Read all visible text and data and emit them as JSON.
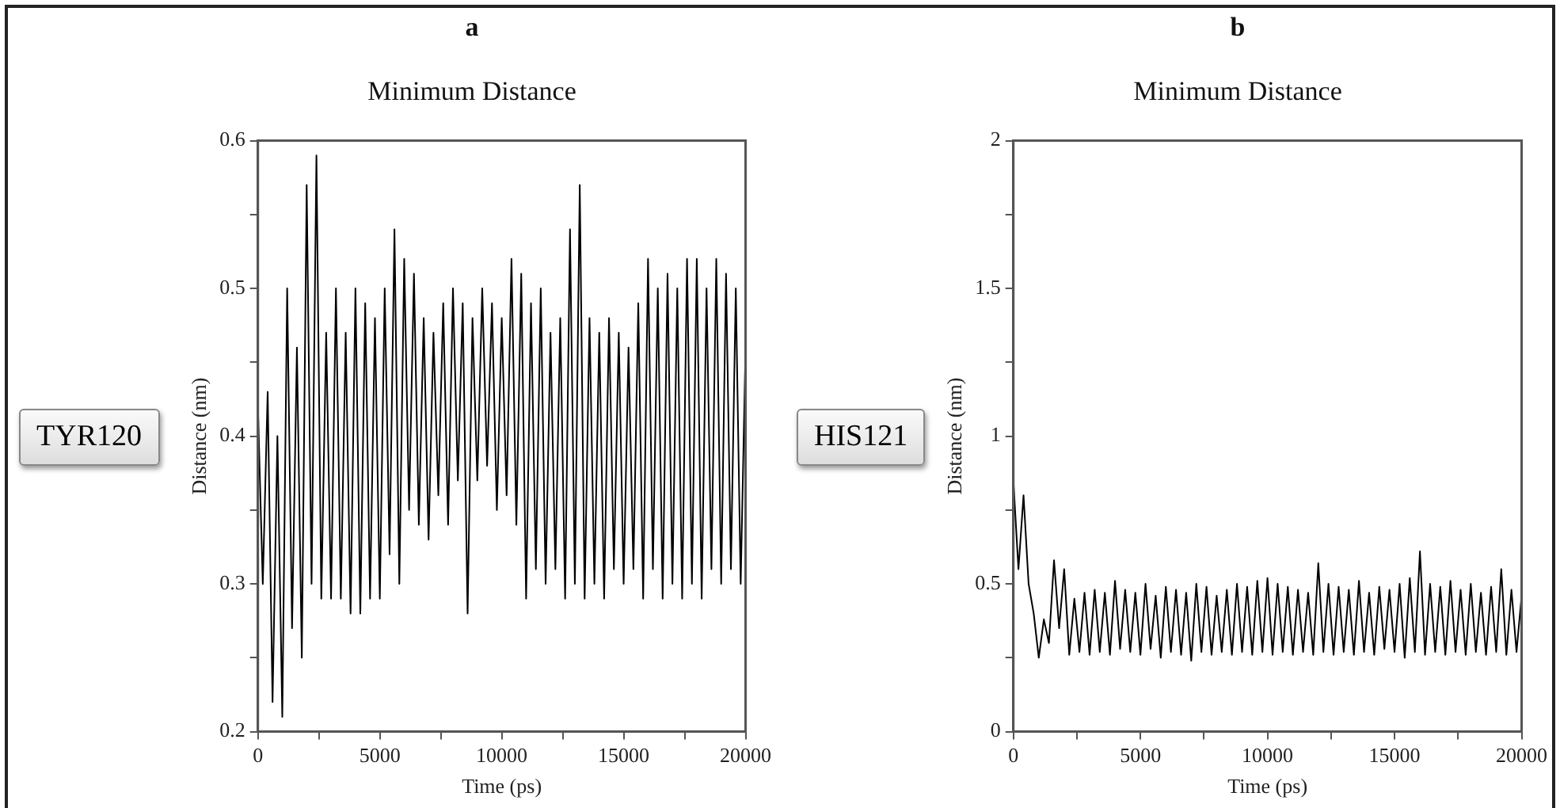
{
  "chart_data": [
    {
      "type": "line",
      "title": "a",
      "subtitle": "Minimum Distance",
      "xlabel": "Time (ps)",
      "ylabel": "Distance (nm)",
      "annotations": [
        "TYR120"
      ],
      "x": [
        0,
        200,
        400,
        600,
        800,
        1000,
        1200,
        1400,
        1600,
        1800,
        2000,
        2200,
        2400,
        2600,
        2800,
        3000,
        3200,
        3400,
        3600,
        3800,
        4000,
        4200,
        4400,
        4600,
        4800,
        5000,
        5200,
        5400,
        5600,
        5800,
        6000,
        6200,
        6400,
        6600,
        6800,
        7000,
        7200,
        7400,
        7600,
        7800,
        8000,
        8200,
        8400,
        8600,
        8800,
        9000,
        9200,
        9400,
        9600,
        9800,
        10000,
        10200,
        10400,
        10600,
        10800,
        11000,
        11200,
        11400,
        11600,
        11800,
        12000,
        12200,
        12400,
        12600,
        12800,
        13000,
        13200,
        13400,
        13600,
        13800,
        14000,
        14200,
        14400,
        14600,
        14800,
        15000,
        15200,
        15400,
        15600,
        15800,
        16000,
        16200,
        16400,
        16600,
        16800,
        17000,
        17200,
        17400,
        17600,
        17800,
        18000,
        18200,
        18400,
        18600,
        18800,
        19000,
        19200,
        19400,
        19600,
        19800,
        20000
      ],
      "series": [
        {
          "color": "#000000",
          "values": [
            0.42,
            0.3,
            0.43,
            0.22,
            0.4,
            0.21,
            0.5,
            0.27,
            0.46,
            0.25,
            0.57,
            0.3,
            0.59,
            0.29,
            0.47,
            0.29,
            0.5,
            0.29,
            0.47,
            0.28,
            0.5,
            0.28,
            0.49,
            0.29,
            0.48,
            0.29,
            0.5,
            0.32,
            0.54,
            0.3,
            0.52,
            0.35,
            0.51,
            0.34,
            0.48,
            0.33,
            0.47,
            0.36,
            0.49,
            0.34,
            0.5,
            0.37,
            0.49,
            0.28,
            0.48,
            0.37,
            0.5,
            0.38,
            0.49,
            0.35,
            0.48,
            0.36,
            0.52,
            0.34,
            0.51,
            0.29,
            0.49,
            0.31,
            0.5,
            0.3,
            0.47,
            0.31,
            0.48,
            0.29,
            0.54,
            0.3,
            0.57,
            0.29,
            0.48,
            0.3,
            0.47,
            0.29,
            0.48,
            0.31,
            0.47,
            0.3,
            0.46,
            0.31,
            0.49,
            0.29,
            0.52,
            0.31,
            0.5,
            0.29,
            0.51,
            0.3,
            0.5,
            0.29,
            0.52,
            0.3,
            0.52,
            0.29,
            0.5,
            0.31,
            0.52,
            0.3,
            0.51,
            0.31,
            0.5,
            0.3,
            0.46
          ]
        }
      ],
      "xlim": [
        0,
        20000
      ],
      "xticks": [
        0,
        {
          "value": 2500,
          "label": null
        },
        5000,
        {
          "value": 7500,
          "label": null
        },
        10000,
        {
          "value": 12500,
          "label": null
        },
        15000,
        {
          "value": 17500,
          "label": null
        },
        20000
      ],
      "ylim": [
        0.2,
        0.6
      ],
      "yticks": [
        0.2,
        {
          "value": 0.25,
          "label": null
        },
        0.3,
        {
          "value": 0.35,
          "label": null
        },
        0.4,
        {
          "value": 0.45,
          "label": null
        },
        0.5,
        {
          "value": 0.55,
          "label": null
        },
        0.6
      ],
      "grid": false,
      "legend": false
    },
    {
      "type": "line",
      "title": "b",
      "subtitle": "Minimum Distance",
      "xlabel": "Time (ps)",
      "ylabel": "Distance (nm)",
      "annotations": [
        "HIS121"
      ],
      "x": [
        0,
        200,
        400,
        600,
        800,
        1000,
        1200,
        1400,
        1600,
        1800,
        2000,
        2200,
        2400,
        2600,
        2800,
        3000,
        3200,
        3400,
        3600,
        3800,
        4000,
        4200,
        4400,
        4600,
        4800,
        5000,
        5200,
        5400,
        5600,
        5800,
        6000,
        6200,
        6400,
        6600,
        6800,
        7000,
        7200,
        7400,
        7600,
        7800,
        8000,
        8200,
        8400,
        8600,
        8800,
        9000,
        9200,
        9400,
        9600,
        9800,
        10000,
        10200,
        10400,
        10600,
        10800,
        11000,
        11200,
        11400,
        11600,
        11800,
        12000,
        12200,
        12400,
        12600,
        12800,
        13000,
        13200,
        13400,
        13600,
        13800,
        14000,
        14200,
        14400,
        14600,
        14800,
        15000,
        15200,
        15400,
        15600,
        15800,
        16000,
        16200,
        16400,
        16600,
        16800,
        17000,
        17200,
        17400,
        17600,
        17800,
        18000,
        18200,
        18400,
        18600,
        18800,
        19000,
        19200,
        19400,
        19600,
        19800,
        20000
      ],
      "series": [
        {
          "color": "#000000",
          "values": [
            0.85,
            0.55,
            0.8,
            0.5,
            0.4,
            0.25,
            0.38,
            0.3,
            0.58,
            0.35,
            0.55,
            0.26,
            0.45,
            0.27,
            0.47,
            0.26,
            0.48,
            0.27,
            0.47,
            0.26,
            0.51,
            0.28,
            0.48,
            0.27,
            0.47,
            0.26,
            0.5,
            0.28,
            0.46,
            0.25,
            0.49,
            0.27,
            0.48,
            0.26,
            0.47,
            0.24,
            0.5,
            0.27,
            0.49,
            0.26,
            0.46,
            0.27,
            0.48,
            0.26,
            0.5,
            0.27,
            0.49,
            0.26,
            0.51,
            0.27,
            0.52,
            0.26,
            0.5,
            0.27,
            0.49,
            0.26,
            0.48,
            0.27,
            0.47,
            0.26,
            0.57,
            0.27,
            0.5,
            0.26,
            0.49,
            0.27,
            0.48,
            0.26,
            0.51,
            0.27,
            0.47,
            0.26,
            0.49,
            0.28,
            0.48,
            0.27,
            0.5,
            0.25,
            0.52,
            0.27,
            0.61,
            0.26,
            0.5,
            0.27,
            0.49,
            0.26,
            0.51,
            0.27,
            0.48,
            0.26,
            0.5,
            0.27,
            0.47,
            0.26,
            0.49,
            0.27,
            0.55,
            0.26,
            0.48,
            0.27,
            0.46
          ]
        }
      ],
      "xlim": [
        0,
        20000
      ],
      "xticks": [
        0,
        {
          "value": 2500,
          "label": null
        },
        5000,
        {
          "value": 7500,
          "label": null
        },
        10000,
        {
          "value": 12500,
          "label": null
        },
        15000,
        {
          "value": 17500,
          "label": null
        },
        20000
      ],
      "ylim": [
        0,
        2
      ],
      "yticks": [
        0,
        {
          "value": 0.25,
          "label": null
        },
        0.5,
        {
          "value": 0.75,
          "label": null
        },
        1,
        {
          "value": 1.25,
          "label": null
        },
        1.5,
        {
          "value": 1.75,
          "label": null
        },
        2
      ],
      "grid": false,
      "legend": false
    }
  ]
}
